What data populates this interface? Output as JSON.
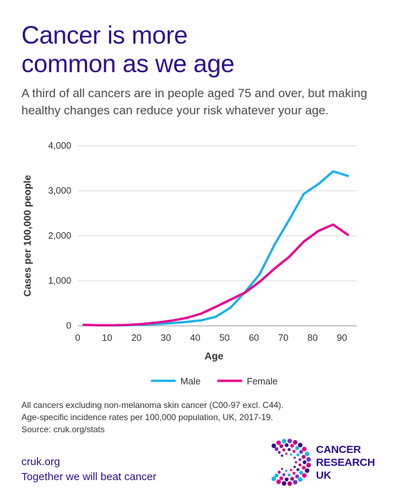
{
  "header": {
    "title_line1": "Cancer is more",
    "title_line2": "common as we age",
    "subtitle_line1": "A third of all cancers are in people aged 75 and over, but making",
    "subtitle_line2": "healthy changes can reduce your risk whatever your age."
  },
  "chart_data": {
    "type": "line",
    "xlabel": "Age",
    "ylabel": "Cases per 100,000 people",
    "xlim": [
      0,
      95
    ],
    "ylim": [
      0,
      4000
    ],
    "x_ticks": [
      0,
      10,
      20,
      30,
      40,
      50,
      60,
      70,
      80,
      90
    ],
    "y_ticks": [
      0,
      1000,
      2000,
      3000,
      4000
    ],
    "y_tick_labels": [
      "0",
      "1,000",
      "2,000",
      "3,000",
      "4,000"
    ],
    "grid": "horizontal",
    "legend_position": "bottom",
    "x": [
      2,
      7,
      12,
      17,
      22,
      27,
      32,
      37,
      42,
      47,
      52,
      57,
      62,
      67,
      72,
      77,
      82,
      87,
      92
    ],
    "series": [
      {
        "name": "Male",
        "color": "#1cb0e6",
        "values": [
          20,
          12,
          10,
          15,
          25,
          40,
          60,
          85,
          120,
          200,
          400,
          750,
          1150,
          1800,
          2350,
          2930,
          3150,
          3430,
          3330
        ]
      },
      {
        "name": "Female",
        "color": "#e6008c",
        "values": [
          20,
          12,
          12,
          20,
          40,
          75,
          115,
          175,
          270,
          420,
          580,
          740,
          980,
          1270,
          1530,
          1870,
          2110,
          2250,
          2020
        ]
      }
    ]
  },
  "notes": {
    "line1": "All cancers excluding non-melanoma skin cancer (C00-97 excl. C44).",
    "line2": "Age-specific incidence rates per 100,000 population, UK, 2017-19.",
    "line3": "Source: cruk.org/stats"
  },
  "footer": {
    "url": "cruk.org",
    "tagline": "Together we will beat cancer",
    "logo_line1": "CANCER",
    "logo_line2": "RESEARCH",
    "logo_line3": "UK"
  }
}
